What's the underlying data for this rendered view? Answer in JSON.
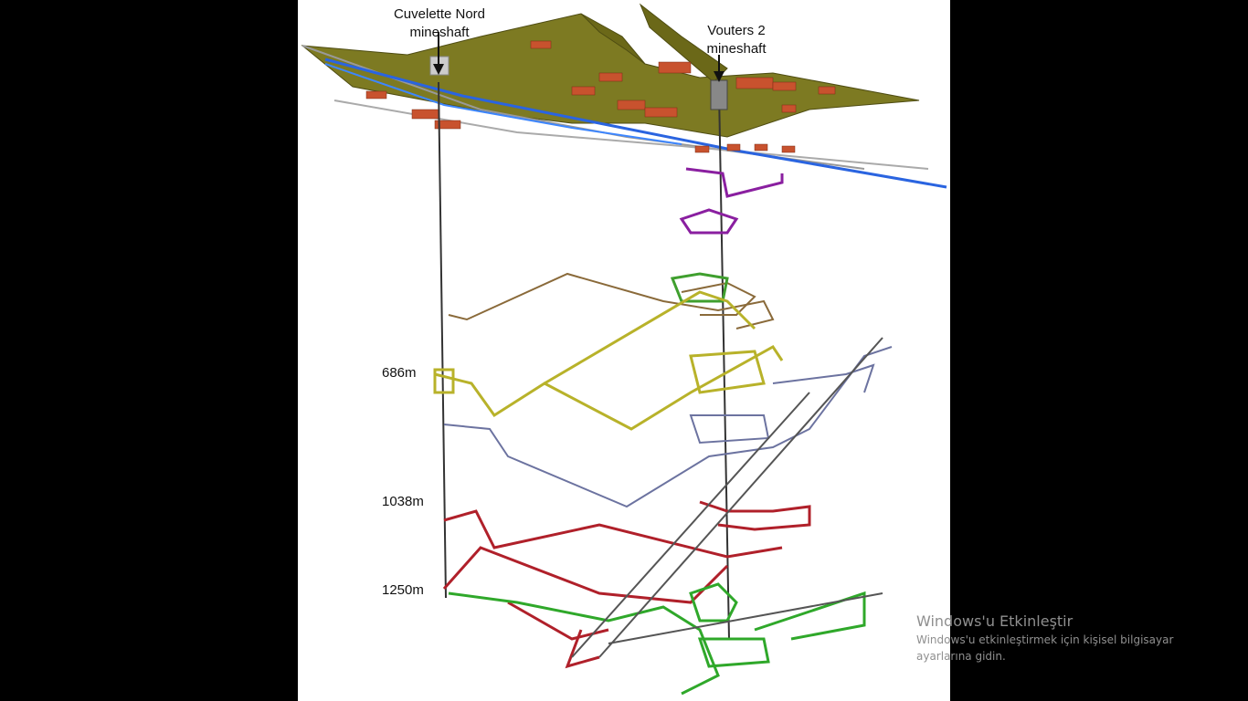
{
  "figure": {
    "shafts": [
      {
        "title_line1": "Cuvelette Nord",
        "title_line2": "mineshaft"
      },
      {
        "title_line1": "Vouters 2",
        "title_line2": "mineshaft"
      }
    ],
    "depth_labels": [
      "686m",
      "1038m",
      "1250m"
    ],
    "level_colors": {
      "terrain": "#7d7a22",
      "roofs": "#c8522e",
      "shaft": "#333333",
      "stage_upper": "#8a1fa0",
      "stage_brown": "#8a6a3a",
      "stage_green_top": "#3f9f2e",
      "stage_olive": "#b8b22a",
      "stage_slate": "#6c73a0",
      "stage_red": "#b0202a",
      "stage_green_bottom": "#2fa82a",
      "water": "#2a64e0"
    }
  },
  "system_overlay": {
    "title": "Windows'u Etkinleştir",
    "line1": "Windows'u etkinleştirmek için kişisel bilgisayar",
    "line2": "ayarlarına gidin."
  }
}
